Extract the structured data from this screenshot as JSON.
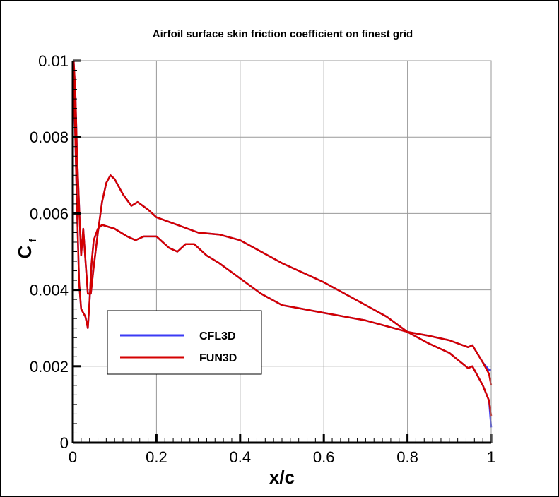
{
  "chart_data": {
    "type": "line",
    "title": "Airfoil surface skin friction coefficient on finest grid",
    "xlabel": "x/c",
    "ylabel_main": "C",
    "ylabel_sub": "f",
    "xlim": [
      0,
      1
    ],
    "ylim": [
      0,
      0.01
    ],
    "xticks": [
      "0",
      "0.2",
      "0.4",
      "0.6",
      "0.8",
      "1"
    ],
    "yticks": [
      "0",
      "0.002",
      "0.004",
      "0.006",
      "0.008",
      "0.01"
    ],
    "grid": true,
    "legend_placement": "lower-left",
    "series": [
      {
        "name": "CFL3D",
        "color": "#3b3bf5",
        "curves": [
          [
            [
              0.002,
              0.01
            ],
            [
              0.006,
              0.0092
            ],
            [
              0.01,
              0.0076
            ],
            [
              0.015,
              0.0062
            ],
            [
              0.02,
              0.0049
            ],
            [
              0.025,
              0.0056
            ],
            [
              0.03,
              0.0048
            ],
            [
              0.036,
              0.0039
            ],
            [
              0.043,
              0.0039
            ],
            [
              0.05,
              0.0046
            ],
            [
              0.06,
              0.0055
            ],
            [
              0.07,
              0.0063
            ],
            [
              0.08,
              0.0068
            ],
            [
              0.09,
              0.007
            ],
            [
              0.1,
              0.0069
            ],
            [
              0.12,
              0.0065
            ],
            [
              0.14,
              0.0062
            ],
            [
              0.155,
              0.0063
            ],
            [
              0.18,
              0.0061
            ],
            [
              0.2,
              0.0059
            ],
            [
              0.25,
              0.0057
            ],
            [
              0.3,
              0.0055
            ],
            [
              0.35,
              0.00545
            ],
            [
              0.4,
              0.0053
            ],
            [
              0.45,
              0.005
            ],
            [
              0.5,
              0.0047
            ],
            [
              0.6,
              0.0042
            ],
            [
              0.7,
              0.0036
            ],
            [
              0.75,
              0.0033
            ],
            [
              0.8,
              0.0029
            ],
            [
              0.85,
              0.0026
            ],
            [
              0.9,
              0.00235
            ],
            [
              0.945,
              0.00195
            ],
            [
              0.955,
              0.002
            ],
            [
              0.98,
              0.0015
            ],
            [
              0.995,
              0.0011
            ],
            [
              1.0,
              0.0004
            ]
          ],
          [
            [
              0.002,
              0.0096
            ],
            [
              0.006,
              0.008
            ],
            [
              0.01,
              0.0062
            ],
            [
              0.015,
              0.0042
            ],
            [
              0.02,
              0.0035
            ],
            [
              0.03,
              0.0033
            ],
            [
              0.036,
              0.003
            ],
            [
              0.04,
              0.0037
            ],
            [
              0.045,
              0.0047
            ],
            [
              0.05,
              0.0053
            ],
            [
              0.06,
              0.0056
            ],
            [
              0.07,
              0.0057
            ],
            [
              0.1,
              0.0056
            ],
            [
              0.13,
              0.0054
            ],
            [
              0.15,
              0.0053
            ],
            [
              0.17,
              0.0054
            ],
            [
              0.2,
              0.0054
            ],
            [
              0.23,
              0.0051
            ],
            [
              0.25,
              0.005
            ],
            [
              0.27,
              0.0052
            ],
            [
              0.29,
              0.0052
            ],
            [
              0.32,
              0.0049
            ],
            [
              0.35,
              0.0047
            ],
            [
              0.4,
              0.0043
            ],
            [
              0.45,
              0.0039
            ],
            [
              0.5,
              0.0036
            ],
            [
              0.55,
              0.0035
            ],
            [
              0.6,
              0.0034
            ],
            [
              0.7,
              0.0032
            ],
            [
              0.8,
              0.0029
            ],
            [
              0.85,
              0.0028
            ],
            [
              0.9,
              0.00268
            ],
            [
              0.945,
              0.0025
            ],
            [
              0.955,
              0.00255
            ],
            [
              0.98,
              0.0021
            ],
            [
              0.995,
              0.0019
            ],
            [
              1.0,
              0.0019
            ]
          ]
        ]
      },
      {
        "name": "FUN3D",
        "color": "#d40000",
        "curves": [
          [
            [
              0.002,
              0.01
            ],
            [
              0.006,
              0.0092
            ],
            [
              0.01,
              0.0076
            ],
            [
              0.015,
              0.0062
            ],
            [
              0.02,
              0.0049
            ],
            [
              0.025,
              0.0056
            ],
            [
              0.03,
              0.0048
            ],
            [
              0.036,
              0.0039
            ],
            [
              0.043,
              0.0039
            ],
            [
              0.05,
              0.0046
            ],
            [
              0.06,
              0.0055
            ],
            [
              0.07,
              0.0063
            ],
            [
              0.08,
              0.0068
            ],
            [
              0.09,
              0.007
            ],
            [
              0.1,
              0.0069
            ],
            [
              0.12,
              0.0065
            ],
            [
              0.14,
              0.0062
            ],
            [
              0.155,
              0.0063
            ],
            [
              0.18,
              0.0061
            ],
            [
              0.2,
              0.0059
            ],
            [
              0.25,
              0.0057
            ],
            [
              0.3,
              0.0055
            ],
            [
              0.35,
              0.00545
            ],
            [
              0.4,
              0.0053
            ],
            [
              0.45,
              0.005
            ],
            [
              0.5,
              0.0047
            ],
            [
              0.6,
              0.0042
            ],
            [
              0.7,
              0.0036
            ],
            [
              0.75,
              0.0033
            ],
            [
              0.8,
              0.0029
            ],
            [
              0.85,
              0.0026
            ],
            [
              0.9,
              0.00235
            ],
            [
              0.945,
              0.00195
            ],
            [
              0.955,
              0.002
            ],
            [
              0.98,
              0.0015
            ],
            [
              0.995,
              0.0011
            ],
            [
              1.0,
              0.0007
            ]
          ],
          [
            [
              0.002,
              0.0096
            ],
            [
              0.006,
              0.008
            ],
            [
              0.01,
              0.0062
            ],
            [
              0.015,
              0.0042
            ],
            [
              0.02,
              0.0035
            ],
            [
              0.03,
              0.0033
            ],
            [
              0.036,
              0.003
            ],
            [
              0.04,
              0.0037
            ],
            [
              0.045,
              0.0047
            ],
            [
              0.05,
              0.0053
            ],
            [
              0.06,
              0.0056
            ],
            [
              0.07,
              0.0057
            ],
            [
              0.1,
              0.0056
            ],
            [
              0.13,
              0.0054
            ],
            [
              0.15,
              0.0053
            ],
            [
              0.17,
              0.0054
            ],
            [
              0.2,
              0.0054
            ],
            [
              0.23,
              0.0051
            ],
            [
              0.25,
              0.005
            ],
            [
              0.27,
              0.0052
            ],
            [
              0.29,
              0.0052
            ],
            [
              0.32,
              0.0049
            ],
            [
              0.35,
              0.0047
            ],
            [
              0.4,
              0.0043
            ],
            [
              0.45,
              0.0039
            ],
            [
              0.5,
              0.0036
            ],
            [
              0.55,
              0.0035
            ],
            [
              0.6,
              0.0034
            ],
            [
              0.7,
              0.0032
            ],
            [
              0.8,
              0.0029
            ],
            [
              0.85,
              0.0028
            ],
            [
              0.9,
              0.00268
            ],
            [
              0.945,
              0.0025
            ],
            [
              0.955,
              0.00255
            ],
            [
              0.98,
              0.0021
            ],
            [
              0.995,
              0.0018
            ],
            [
              1.0,
              0.0015
            ]
          ]
        ]
      }
    ]
  }
}
